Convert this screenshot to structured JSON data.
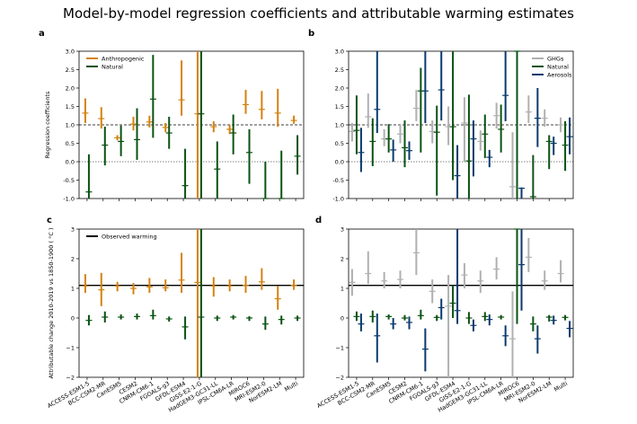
{
  "title": "Model-by-model regression coefficients and attributable warming estimates",
  "colors": {
    "Anthropogenic": "#d4820f",
    "Natural": "#0a5212",
    "GHGs": "#b0b0b0",
    "Aerosols": "#0a3a6e",
    "Observed warming": "#000000"
  },
  "models": [
    "ACCESS-ESM1-5",
    "BCC-CSM2-MR",
    "CanESM5",
    "CESM2",
    "CNRM-CM6-1",
    "FGOALS-g3",
    "GFDL-ESM4",
    "GISS-E2-1-G",
    "HadGEM3-GC31-LL",
    "IPSL-CM6A-LR",
    "MIROC6",
    "MRI-ESM2-0",
    "NorESM2-LM",
    "Multi"
  ],
  "observed_warming": 1.1,
  "chart_data": [
    {
      "panel": "a",
      "type": "errorbar",
      "ylabel": "Regression coefficients",
      "ylim": [
        -1.0,
        3.0
      ],
      "yticks": [
        "-1.0",
        "-0.5",
        "0.0",
        "0.5",
        "1.0",
        "1.5",
        "2.0",
        "2.5",
        "3.0"
      ],
      "ref_lines": [
        1.0,
        0.0
      ],
      "legend": [
        "Anthropogenic",
        "Natural"
      ],
      "legend_position": "top-left",
      "series": [
        {
          "name": "Anthropogenic",
          "center": [
            1.32,
            1.17,
            0.65,
            1.02,
            1.08,
            0.93,
            1.68,
            1.3,
            0.95,
            0.88,
            1.55,
            1.42,
            1.32,
            1.12
          ],
          "low": [
            1.05,
            0.9,
            0.58,
            0.85,
            0.93,
            0.8,
            1.25,
            -1.0,
            0.8,
            0.75,
            1.3,
            1.15,
            0.95,
            1.03
          ],
          "high": [
            1.72,
            1.48,
            0.72,
            1.22,
            1.25,
            1.05,
            2.75,
            3.0,
            1.1,
            1.0,
            1.95,
            1.92,
            1.98,
            1.25
          ]
        },
        {
          "name": "Natural",
          "center": [
            -0.82,
            0.45,
            0.55,
            0.6,
            1.7,
            0.78,
            -0.65,
            1.3,
            -0.2,
            0.78,
            0.25,
            -1.0,
            -1.0,
            0.15
          ],
          "low": [
            -1.0,
            -0.1,
            0.15,
            0.05,
            0.65,
            0.35,
            -1.0,
            -1.0,
            -1.0,
            0.2,
            -0.6,
            -1.0,
            -1.0,
            -0.35
          ],
          "high": [
            0.2,
            0.95,
            0.98,
            1.45,
            2.9,
            1.22,
            0.35,
            3.0,
            0.55,
            1.28,
            0.88,
            0.0,
            0.3,
            0.72
          ]
        }
      ]
    },
    {
      "panel": "b",
      "type": "errorbar",
      "ylim": [
        -1.0,
        3.0
      ],
      "yticks": [
        "-1.0",
        "-0.5",
        "0.0",
        "0.5",
        "1.0",
        "1.5",
        "2.0",
        "2.5",
        "3.0"
      ],
      "ref_lines": [
        1.0,
        0.0
      ],
      "legend": [
        "GHGs",
        "Natural",
        "Aerosols"
      ],
      "legend_position": "top-right",
      "series": [
        {
          "name": "GHGs",
          "center": [
            0.82,
            1.22,
            0.62,
            0.75,
            1.45,
            0.82,
            0.95,
            1.05,
            0.55,
            1.25,
            -0.68,
            1.35,
            1.18,
            1.0
          ],
          "low": [
            0.55,
            0.92,
            0.42,
            0.5,
            1.1,
            0.5,
            0.45,
            0.0,
            0.3,
            0.9,
            -1.0,
            1.05,
            0.95,
            0.8
          ],
          "high": [
            1.05,
            1.85,
            0.88,
            1.0,
            1.95,
            1.12,
            1.5,
            1.75,
            0.85,
            1.6,
            0.8,
            1.8,
            1.42,
            1.2
          ]
        },
        {
          "name": "Natural",
          "center": [
            0.85,
            0.55,
            0.62,
            0.38,
            1.92,
            0.8,
            0.95,
            0.02,
            0.75,
            0.88,
            3.0,
            -0.95,
            0.55,
            0.45
          ],
          "low": [
            0.2,
            -0.12,
            0.25,
            -0.15,
            0.25,
            -0.92,
            -0.5,
            -1.0,
            0.1,
            0.25,
            -1.0,
            -1.0,
            -0.2,
            -0.25
          ],
          "high": [
            1.8,
            1.18,
            1.02,
            1.12,
            2.55,
            1.52,
            3.0,
            1.82,
            1.28,
            1.55,
            3.0,
            0.18,
            0.72,
            1.1
          ]
        },
        {
          "name": "Aerosols",
          "center": [
            0.25,
            1.42,
            0.32,
            0.3,
            1.92,
            1.95,
            -0.38,
            0.62,
            0.12,
            1.8,
            -0.72,
            1.18,
            0.5,
            0.68
          ],
          "low": [
            -0.28,
            0.78,
            0.0,
            0.05,
            1.05,
            1.12,
            -1.0,
            -0.4,
            -0.15,
            1.1,
            -1.0,
            0.4,
            0.18,
            0.2
          ],
          "high": [
            0.92,
            3.0,
            0.6,
            0.55,
            3.0,
            3.0,
            0.45,
            1.12,
            0.32,
            3.0,
            -0.7,
            2.0,
            0.68,
            1.2
          ]
        }
      ]
    },
    {
      "panel": "c",
      "type": "errorbar",
      "ylabel": "Attributable change 2010-2019 vs 1850-1900 ( °C )",
      "ylim": [
        -2,
        3
      ],
      "yticks": [
        "−2",
        "−1",
        "0",
        "1",
        "2",
        "3"
      ],
      "legend": [
        "Observed warming"
      ],
      "legend_position": "top-left",
      "series": [
        {
          "name": "Anthropogenic",
          "center": [
            1.08,
            0.95,
            1.08,
            1.0,
            1.05,
            1.02,
            1.28,
            1.2,
            1.08,
            1.08,
            1.1,
            1.22,
            0.65,
            1.1
          ],
          "low": [
            0.85,
            0.4,
            0.9,
            0.8,
            0.85,
            0.9,
            0.85,
            -2.0,
            0.72,
            0.9,
            0.85,
            0.95,
            0.28,
            0.95
          ],
          "high": [
            1.48,
            1.52,
            1.22,
            1.18,
            1.35,
            1.3,
            2.2,
            3.0,
            1.38,
            1.3,
            1.42,
            1.68,
            1.08,
            1.3
          ]
        },
        {
          "name": "Natural",
          "center": [
            -0.08,
            0.03,
            0.03,
            0.05,
            0.08,
            -0.03,
            -0.3,
            0.03,
            0.0,
            0.03,
            0.0,
            -0.2,
            -0.05,
            0.0
          ],
          "low": [
            -0.25,
            -0.15,
            -0.05,
            -0.05,
            -0.05,
            -0.12,
            -0.72,
            -2.0,
            -0.1,
            -0.05,
            -0.1,
            -0.4,
            -0.22,
            -0.1
          ],
          "high": [
            0.1,
            0.22,
            0.12,
            0.15,
            0.28,
            0.05,
            0.05,
            3.0,
            0.08,
            0.1,
            0.06,
            0.05,
            0.08,
            0.08
          ]
        }
      ]
    },
    {
      "panel": "d",
      "type": "errorbar",
      "ylim": [
        -2,
        3
      ],
      "yticks": [
        "−2",
        "−1",
        "0",
        "1",
        "2",
        "3"
      ],
      "series": [
        {
          "name": "GHGs",
          "center": [
            1.2,
            1.5,
            1.25,
            1.3,
            2.2,
            0.9,
            0.4,
            1.45,
            1.25,
            1.65,
            -0.7,
            2.05,
            1.25,
            1.5
          ],
          "low": [
            0.75,
            1.15,
            1.0,
            1.0,
            1.45,
            0.5,
            -2.0,
            1.0,
            0.85,
            1.3,
            -2.0,
            1.55,
            0.95,
            1.2
          ],
          "high": [
            1.65,
            2.25,
            1.55,
            1.6,
            3.0,
            1.3,
            1.45,
            1.85,
            1.6,
            2.05,
            0.9,
            2.7,
            1.6,
            1.95
          ]
        },
        {
          "name": "Natural",
          "center": [
            0.05,
            0.05,
            0.05,
            0.0,
            0.08,
            0.02,
            0.5,
            0.0,
            0.05,
            0.03,
            3.0,
            -0.2,
            0.03,
            0.02
          ],
          "low": [
            -0.1,
            -0.15,
            -0.05,
            -0.08,
            -0.05,
            -0.1,
            0.0,
            -0.2,
            -0.1,
            -0.05,
            -0.2,
            -0.45,
            -0.12,
            -0.08
          ],
          "high": [
            0.22,
            0.25,
            0.12,
            0.1,
            0.28,
            0.1,
            1.1,
            0.2,
            0.2,
            0.1,
            3.0,
            0.05,
            0.1,
            0.1
          ]
        },
        {
          "name": "Aerosols",
          "center": [
            -0.2,
            -0.6,
            -0.2,
            -0.15,
            -1.05,
            0.35,
            0.25,
            -0.25,
            -0.05,
            -0.6,
            1.8,
            -0.7,
            -0.08,
            -0.35
          ],
          "low": [
            -0.45,
            -1.5,
            -0.38,
            -0.38,
            -1.8,
            -0.05,
            -0.2,
            -0.45,
            -0.25,
            -0.95,
            0.25,
            -1.2,
            -0.22,
            -0.65
          ],
          "high": [
            0.15,
            0.15,
            0.0,
            0.05,
            -0.35,
            0.65,
            3.0,
            -0.05,
            0.12,
            -0.25,
            3.0,
            -0.25,
            0.08,
            -0.1
          ]
        }
      ]
    }
  ]
}
